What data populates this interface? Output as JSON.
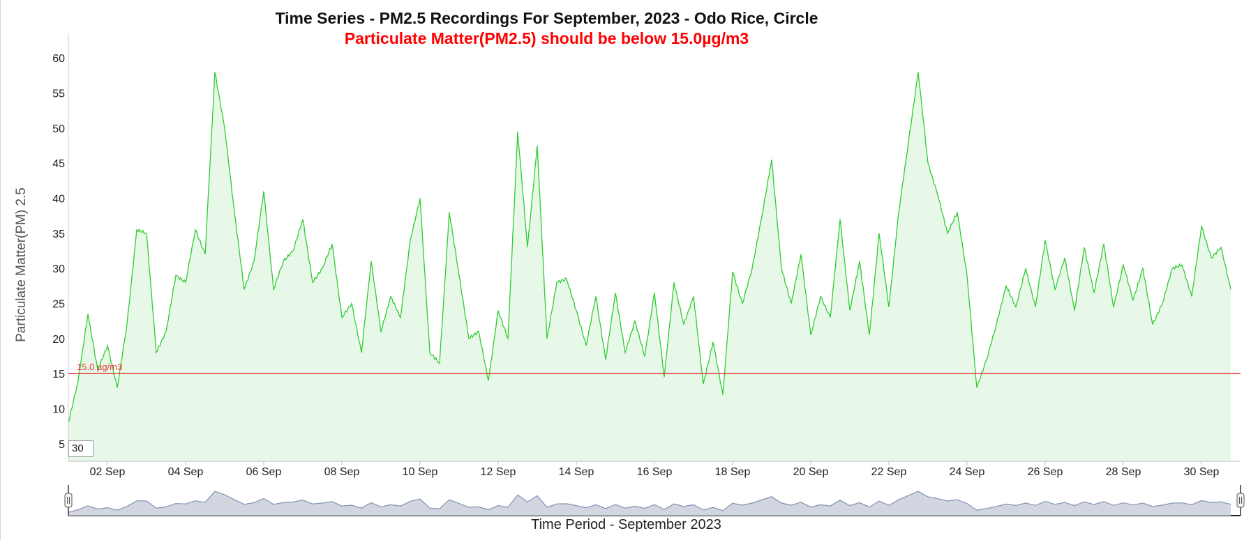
{
  "chart": {
    "title": "Time Series - PM2.5 Recordings For September, 2023 - Odo Rice, Circle",
    "subtitle": "Particulate Matter(PM2.5) should be below 15.0µg/m3",
    "window_value": "30"
  },
  "chart_data": {
    "type": "area",
    "title": "Time Series - PM2.5 Recordings For September, 2023 - Odo Rice, Circle",
    "subtitle": "Particulate Matter(PM2.5) should be below 15.0µg/m3",
    "xlabel": "Time Period - September 2023",
    "ylabel": "Particulate Matter(PM) 2.5",
    "x_range": [
      "2023-09-01",
      "2023-10-01"
    ],
    "ylim": [
      2.5,
      63.5
    ],
    "y_ticks": [
      5,
      10,
      15,
      20,
      25,
      30,
      35,
      40,
      45,
      50,
      55,
      60
    ],
    "x_ticks": [
      "02 Sep",
      "04 Sep",
      "06 Sep",
      "08 Sep",
      "10 Sep",
      "12 Sep",
      "14 Sep",
      "16 Sep",
      "18 Sep",
      "20 Sep",
      "22 Sep",
      "24 Sep",
      "26 Sep",
      "28 Sep",
      "30 Sep"
    ],
    "threshold": {
      "value": 15,
      "label": "15.0 µg/m3",
      "color": "#e53935"
    },
    "colors": {
      "line": "#2ecc2e",
      "fill": "#e8f8e8",
      "navigator_fill": "#d2d6e1",
      "navigator_line": "#8391b0"
    },
    "series": [
      {
        "values": [
          [
            "2023-09-01",
            8
          ],
          [
            "2023-09-01 06:00",
            14
          ],
          [
            "2023-09-01 12:00",
            23.5
          ],
          [
            "2023-09-01 18:00",
            15.5
          ],
          [
            "2023-09-02",
            19
          ],
          [
            "2023-09-02 06:00",
            13
          ],
          [
            "2023-09-02 12:00",
            22
          ],
          [
            "2023-09-02 18:00",
            35.5
          ],
          [
            "2023-09-03",
            35
          ],
          [
            "2023-09-03 06:00",
            18
          ],
          [
            "2023-09-03 12:00",
            21
          ],
          [
            "2023-09-03 18:00",
            29
          ],
          [
            "2023-09-04",
            28
          ],
          [
            "2023-09-04 06:00",
            35.5
          ],
          [
            "2023-09-04 12:00",
            32
          ],
          [
            "2023-09-04 18:00",
            58
          ],
          [
            "2023-09-05",
            50
          ],
          [
            "2023-09-05 06:00",
            38
          ],
          [
            "2023-09-05 12:00",
            27
          ],
          [
            "2023-09-05 18:00",
            31
          ],
          [
            "2023-09-06",
            41
          ],
          [
            "2023-09-06 06:00",
            27
          ],
          [
            "2023-09-06 12:00",
            31
          ],
          [
            "2023-09-06 18:00",
            32.5
          ],
          [
            "2023-09-07",
            37
          ],
          [
            "2023-09-07 06:00",
            28
          ],
          [
            "2023-09-07 12:00",
            30
          ],
          [
            "2023-09-07 18:00",
            33.5
          ],
          [
            "2023-09-08",
            23
          ],
          [
            "2023-09-08 06:00",
            25
          ],
          [
            "2023-09-08 12:00",
            18
          ],
          [
            "2023-09-08 18:00",
            31
          ],
          [
            "2023-09-09",
            21
          ],
          [
            "2023-09-09 06:00",
            26
          ],
          [
            "2023-09-09 12:00",
            23
          ],
          [
            "2023-09-09 18:00",
            34
          ],
          [
            "2023-09-10",
            40
          ],
          [
            "2023-09-10 06:00",
            18
          ],
          [
            "2023-09-10 12:00",
            16.5
          ],
          [
            "2023-09-10 18:00",
            38
          ],
          [
            "2023-09-11",
            29
          ],
          [
            "2023-09-11 06:00",
            20
          ],
          [
            "2023-09-11 12:00",
            21
          ],
          [
            "2023-09-11 18:00",
            14
          ],
          [
            "2023-09-12",
            24
          ],
          [
            "2023-09-12 06:00",
            20
          ],
          [
            "2023-09-12 12:00",
            49.5
          ],
          [
            "2023-09-12 18:00",
            33
          ],
          [
            "2023-09-13",
            47.5
          ],
          [
            "2023-09-13 06:00",
            20
          ],
          [
            "2023-09-13 12:00",
            28
          ],
          [
            "2023-09-13 18:00",
            28.5
          ],
          [
            "2023-09-14",
            24
          ],
          [
            "2023-09-14 06:00",
            19
          ],
          [
            "2023-09-14 12:00",
            26
          ],
          [
            "2023-09-14 18:00",
            17
          ],
          [
            "2023-09-15",
            26.5
          ],
          [
            "2023-09-15 06:00",
            18
          ],
          [
            "2023-09-15 12:00",
            22.5
          ],
          [
            "2023-09-15 18:00",
            17.5
          ],
          [
            "2023-09-16",
            26.5
          ],
          [
            "2023-09-16 06:00",
            14.5
          ],
          [
            "2023-09-16 12:00",
            28
          ],
          [
            "2023-09-16 18:00",
            22
          ],
          [
            "2023-09-17",
            26
          ],
          [
            "2023-09-17 06:00",
            13.5
          ],
          [
            "2023-09-17 12:00",
            19.5
          ],
          [
            "2023-09-17 18:00",
            12
          ],
          [
            "2023-09-18",
            29.5
          ],
          [
            "2023-09-18 06:00",
            25
          ],
          [
            "2023-09-18 12:00",
            30
          ],
          [
            "2023-09-18 18:00",
            37.5
          ],
          [
            "2023-09-19",
            45.5
          ],
          [
            "2023-09-19 06:00",
            30
          ],
          [
            "2023-09-19 12:00",
            25
          ],
          [
            "2023-09-19 18:00",
            32
          ],
          [
            "2023-09-20",
            20.5
          ],
          [
            "2023-09-20 06:00",
            26
          ],
          [
            "2023-09-20 12:00",
            23
          ],
          [
            "2023-09-20 18:00",
            37
          ],
          [
            "2023-09-21",
            24
          ],
          [
            "2023-09-21 06:00",
            31
          ],
          [
            "2023-09-21 12:00",
            20.5
          ],
          [
            "2023-09-21 18:00",
            35
          ],
          [
            "2023-09-22",
            24.5
          ],
          [
            "2023-09-22 06:00",
            38
          ],
          [
            "2023-09-22 12:00",
            48
          ],
          [
            "2023-09-22 18:00",
            58
          ],
          [
            "2023-09-23",
            45
          ],
          [
            "2023-09-23 06:00",
            40.5
          ],
          [
            "2023-09-23 12:00",
            35
          ],
          [
            "2023-09-23 18:00",
            38
          ],
          [
            "2023-09-24",
            29
          ],
          [
            "2023-09-24 06:00",
            13
          ],
          [
            "2023-09-24 12:00",
            17
          ],
          [
            "2023-09-24 18:00",
            22
          ],
          [
            "2023-09-25",
            27.5
          ],
          [
            "2023-09-25 06:00",
            24.5
          ],
          [
            "2023-09-25 12:00",
            30
          ],
          [
            "2023-09-25 18:00",
            24.5
          ],
          [
            "2023-09-26",
            34
          ],
          [
            "2023-09-26 06:00",
            27
          ],
          [
            "2023-09-26 12:00",
            31.5
          ],
          [
            "2023-09-26 18:00",
            24
          ],
          [
            "2023-09-27",
            33
          ],
          [
            "2023-09-27 06:00",
            26.5
          ],
          [
            "2023-09-27 12:00",
            33.5
          ],
          [
            "2023-09-27 18:00",
            24.5
          ],
          [
            "2023-09-28",
            30.5
          ],
          [
            "2023-09-28 06:00",
            25.5
          ],
          [
            "2023-09-28 12:00",
            30
          ],
          [
            "2023-09-28 18:00",
            22
          ],
          [
            "2023-09-29",
            25
          ],
          [
            "2023-09-29 06:00",
            30
          ],
          [
            "2023-09-29 12:00",
            30.5
          ],
          [
            "2023-09-29 18:00",
            26
          ],
          [
            "2023-09-30",
            36
          ],
          [
            "2023-09-30 06:00",
            31.5
          ],
          [
            "2023-09-30 12:00",
            33
          ],
          [
            "2023-09-30 18:00",
            27
          ]
        ]
      }
    ]
  }
}
